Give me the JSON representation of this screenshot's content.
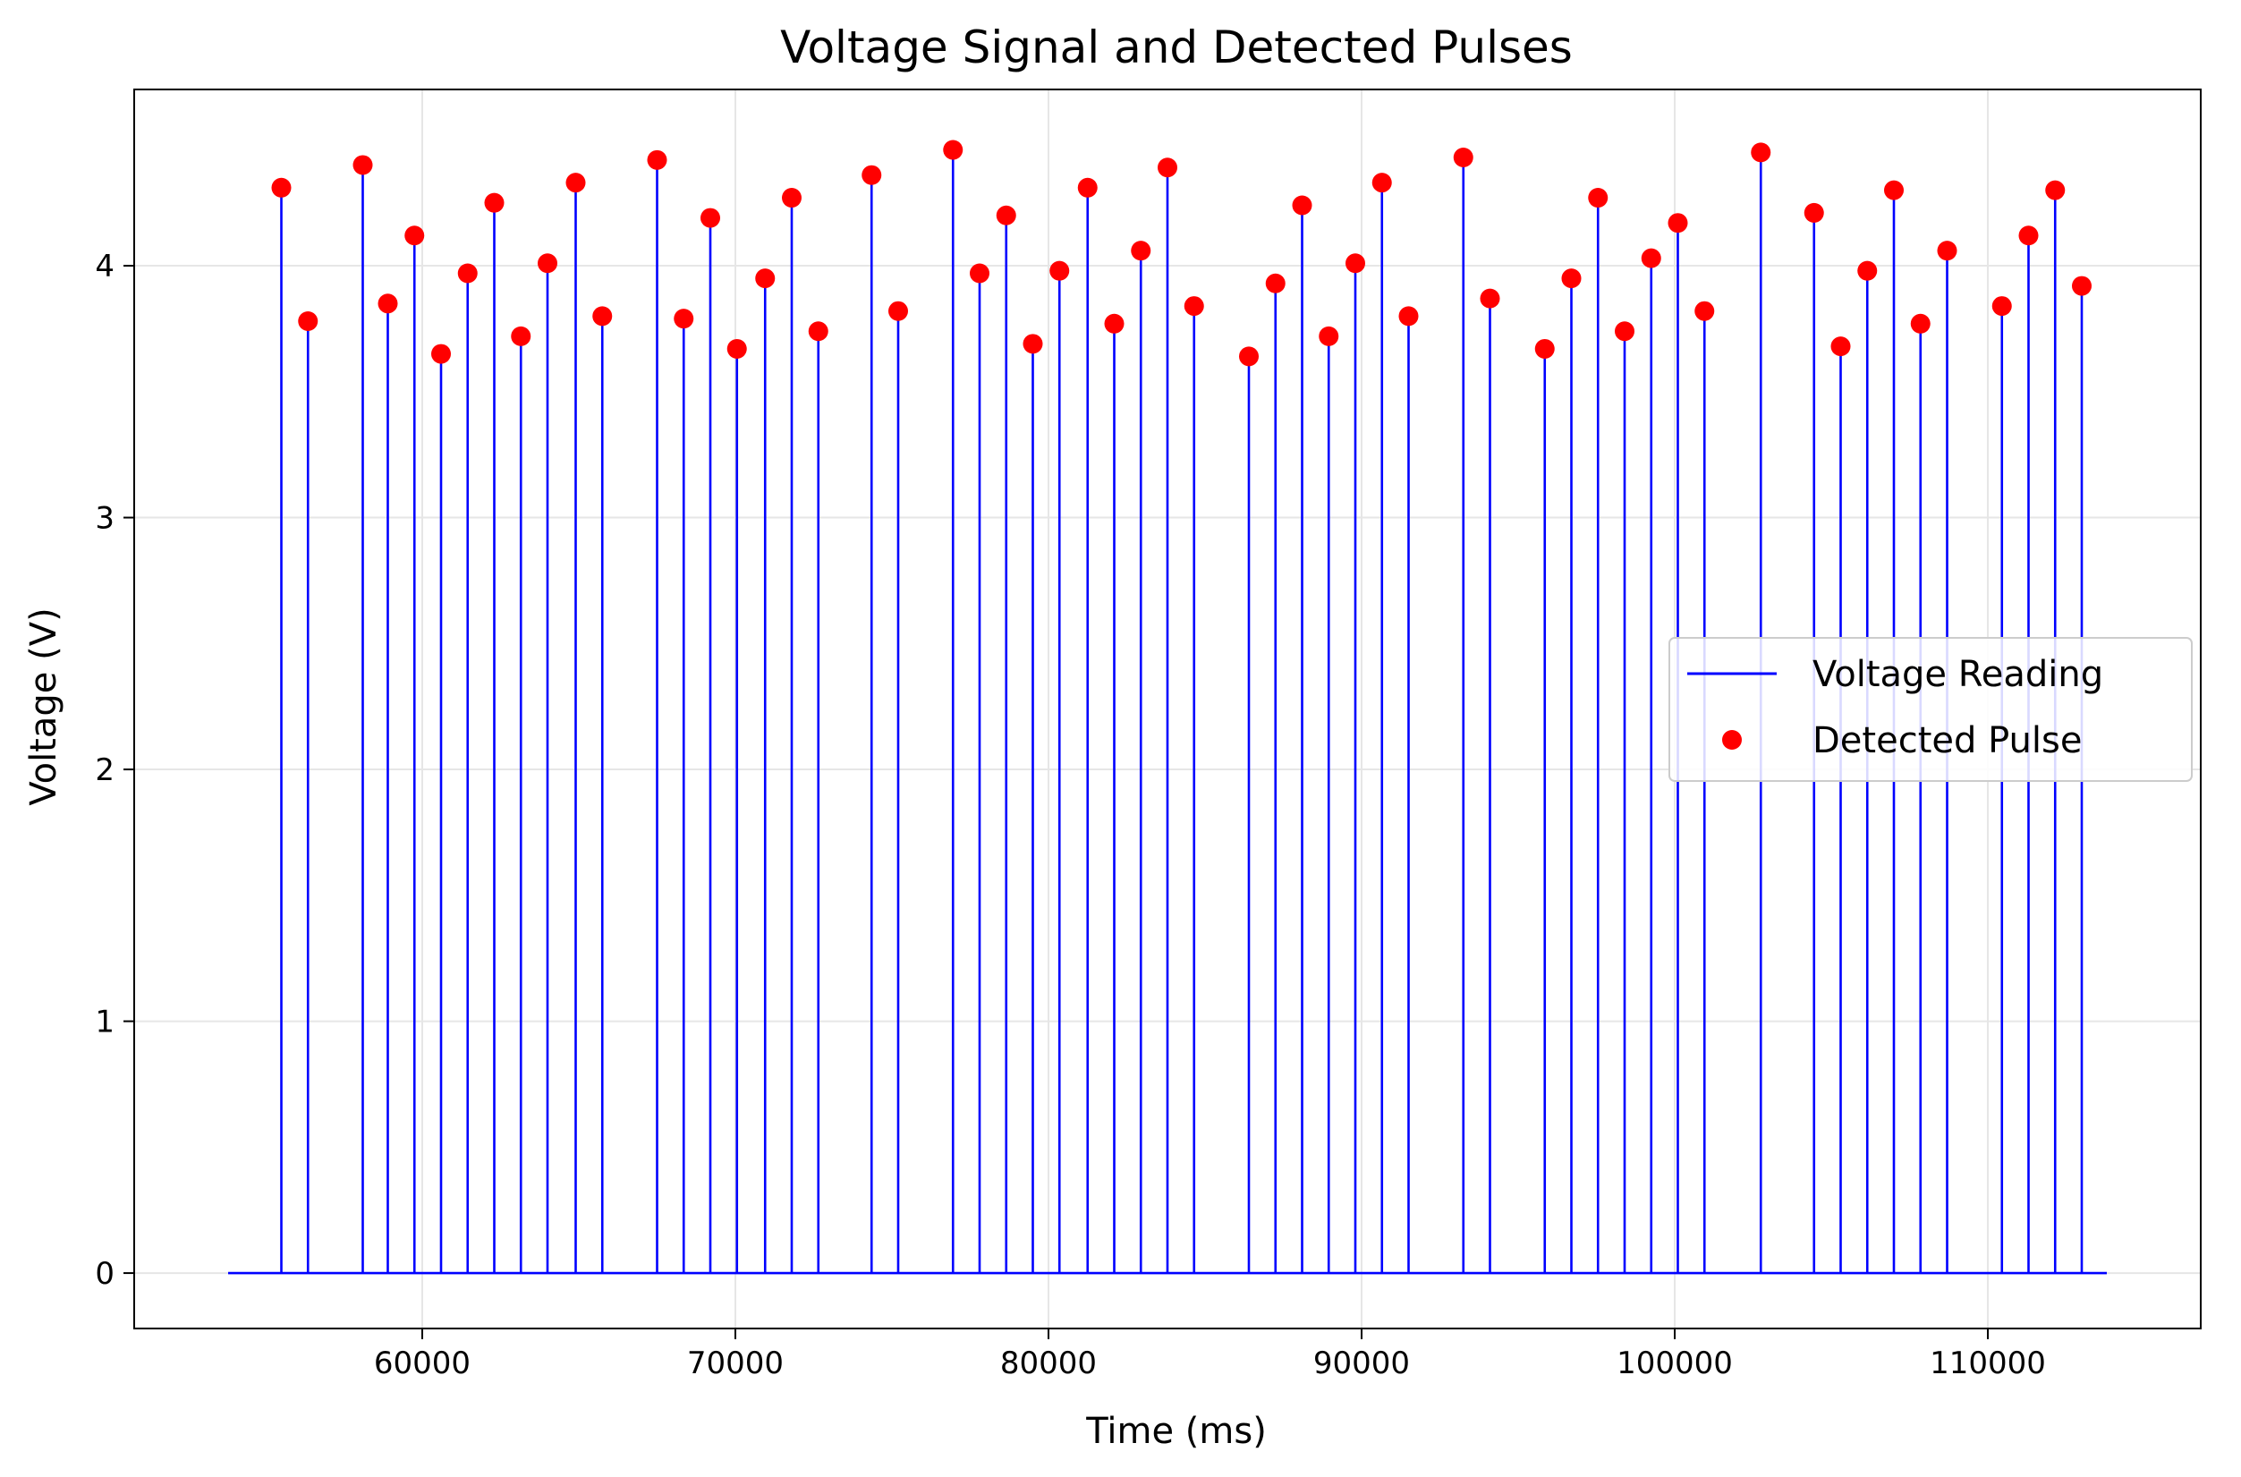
{
  "chart_data": {
    "type": "line",
    "title": "Voltage Signal and Detected Pulses",
    "xlabel": "Time (ms)",
    "ylabel": "Voltage (V)",
    "xlim": [
      50800,
      116800
    ],
    "ylim": [
      -0.22,
      4.7
    ],
    "x_ticks": [
      60000,
      70000,
      80000,
      90000,
      100000,
      110000
    ],
    "x_tick_labels": [
      "60000",
      "70000",
      "80000",
      "90000",
      "100000",
      "110000"
    ],
    "y_ticks": [
      0,
      1,
      2,
      3,
      4
    ],
    "y_tick_labels": [
      "0",
      "1",
      "2",
      "3",
      "4"
    ],
    "grid": true,
    "legend_position": "center-right",
    "legend": [
      {
        "label": "Voltage Reading",
        "marker": "line",
        "color": "#0000ff"
      },
      {
        "label": "Detected Pulse",
        "marker": "dot",
        "color": "#ff0000"
      }
    ],
    "signal": {
      "name": "Voltage Reading",
      "color": "#0000ff",
      "baseline": 0,
      "x_start": 53800,
      "x_end": 113800
    },
    "pulses": {
      "name": "Detected Pulse",
      "color": "#ff0000",
      "points": [
        [
          55500,
          4.31
        ],
        [
          56350,
          3.78
        ],
        [
          58100,
          4.4
        ],
        [
          58900,
          3.85
        ],
        [
          59750,
          4.12
        ],
        [
          60600,
          3.65
        ],
        [
          61450,
          3.97
        ],
        [
          62300,
          4.25
        ],
        [
          63150,
          3.72
        ],
        [
          64000,
          4.01
        ],
        [
          64900,
          4.33
        ],
        [
          65750,
          3.8
        ],
        [
          67500,
          4.42
        ],
        [
          68350,
          3.79
        ],
        [
          69200,
          4.19
        ],
        [
          70050,
          3.67
        ],
        [
          70950,
          3.95
        ],
        [
          71800,
          4.27
        ],
        [
          72650,
          3.74
        ],
        [
          74350,
          4.36
        ],
        [
          75200,
          3.82
        ],
        [
          76950,
          4.46
        ],
        [
          77800,
          3.97
        ],
        [
          78650,
          4.2
        ],
        [
          79500,
          3.69
        ],
        [
          80350,
          3.98
        ],
        [
          81250,
          4.31
        ],
        [
          82100,
          3.77
        ],
        [
          82950,
          4.06
        ],
        [
          83800,
          4.39
        ],
        [
          84650,
          3.84
        ],
        [
          86400,
          3.64
        ],
        [
          87250,
          3.93
        ],
        [
          88100,
          4.24
        ],
        [
          88950,
          3.72
        ],
        [
          89800,
          4.01
        ],
        [
          90650,
          4.33
        ],
        [
          91500,
          3.8
        ],
        [
          93250,
          4.43
        ],
        [
          94100,
          3.87
        ],
        [
          95850,
          3.67
        ],
        [
          96700,
          3.95
        ],
        [
          97550,
          4.27
        ],
        [
          98400,
          3.74
        ],
        [
          99250,
          4.03
        ],
        [
          100100,
          4.17
        ],
        [
          100950,
          3.82
        ],
        [
          102750,
          4.45
        ],
        [
          104450,
          4.21
        ],
        [
          105300,
          3.68
        ],
        [
          106150,
          3.98
        ],
        [
          107000,
          4.3
        ],
        [
          107850,
          3.77
        ],
        [
          108700,
          4.06
        ],
        [
          110450,
          3.84
        ],
        [
          111300,
          4.12
        ],
        [
          112150,
          4.3
        ],
        [
          113000,
          3.92
        ]
      ]
    }
  }
}
